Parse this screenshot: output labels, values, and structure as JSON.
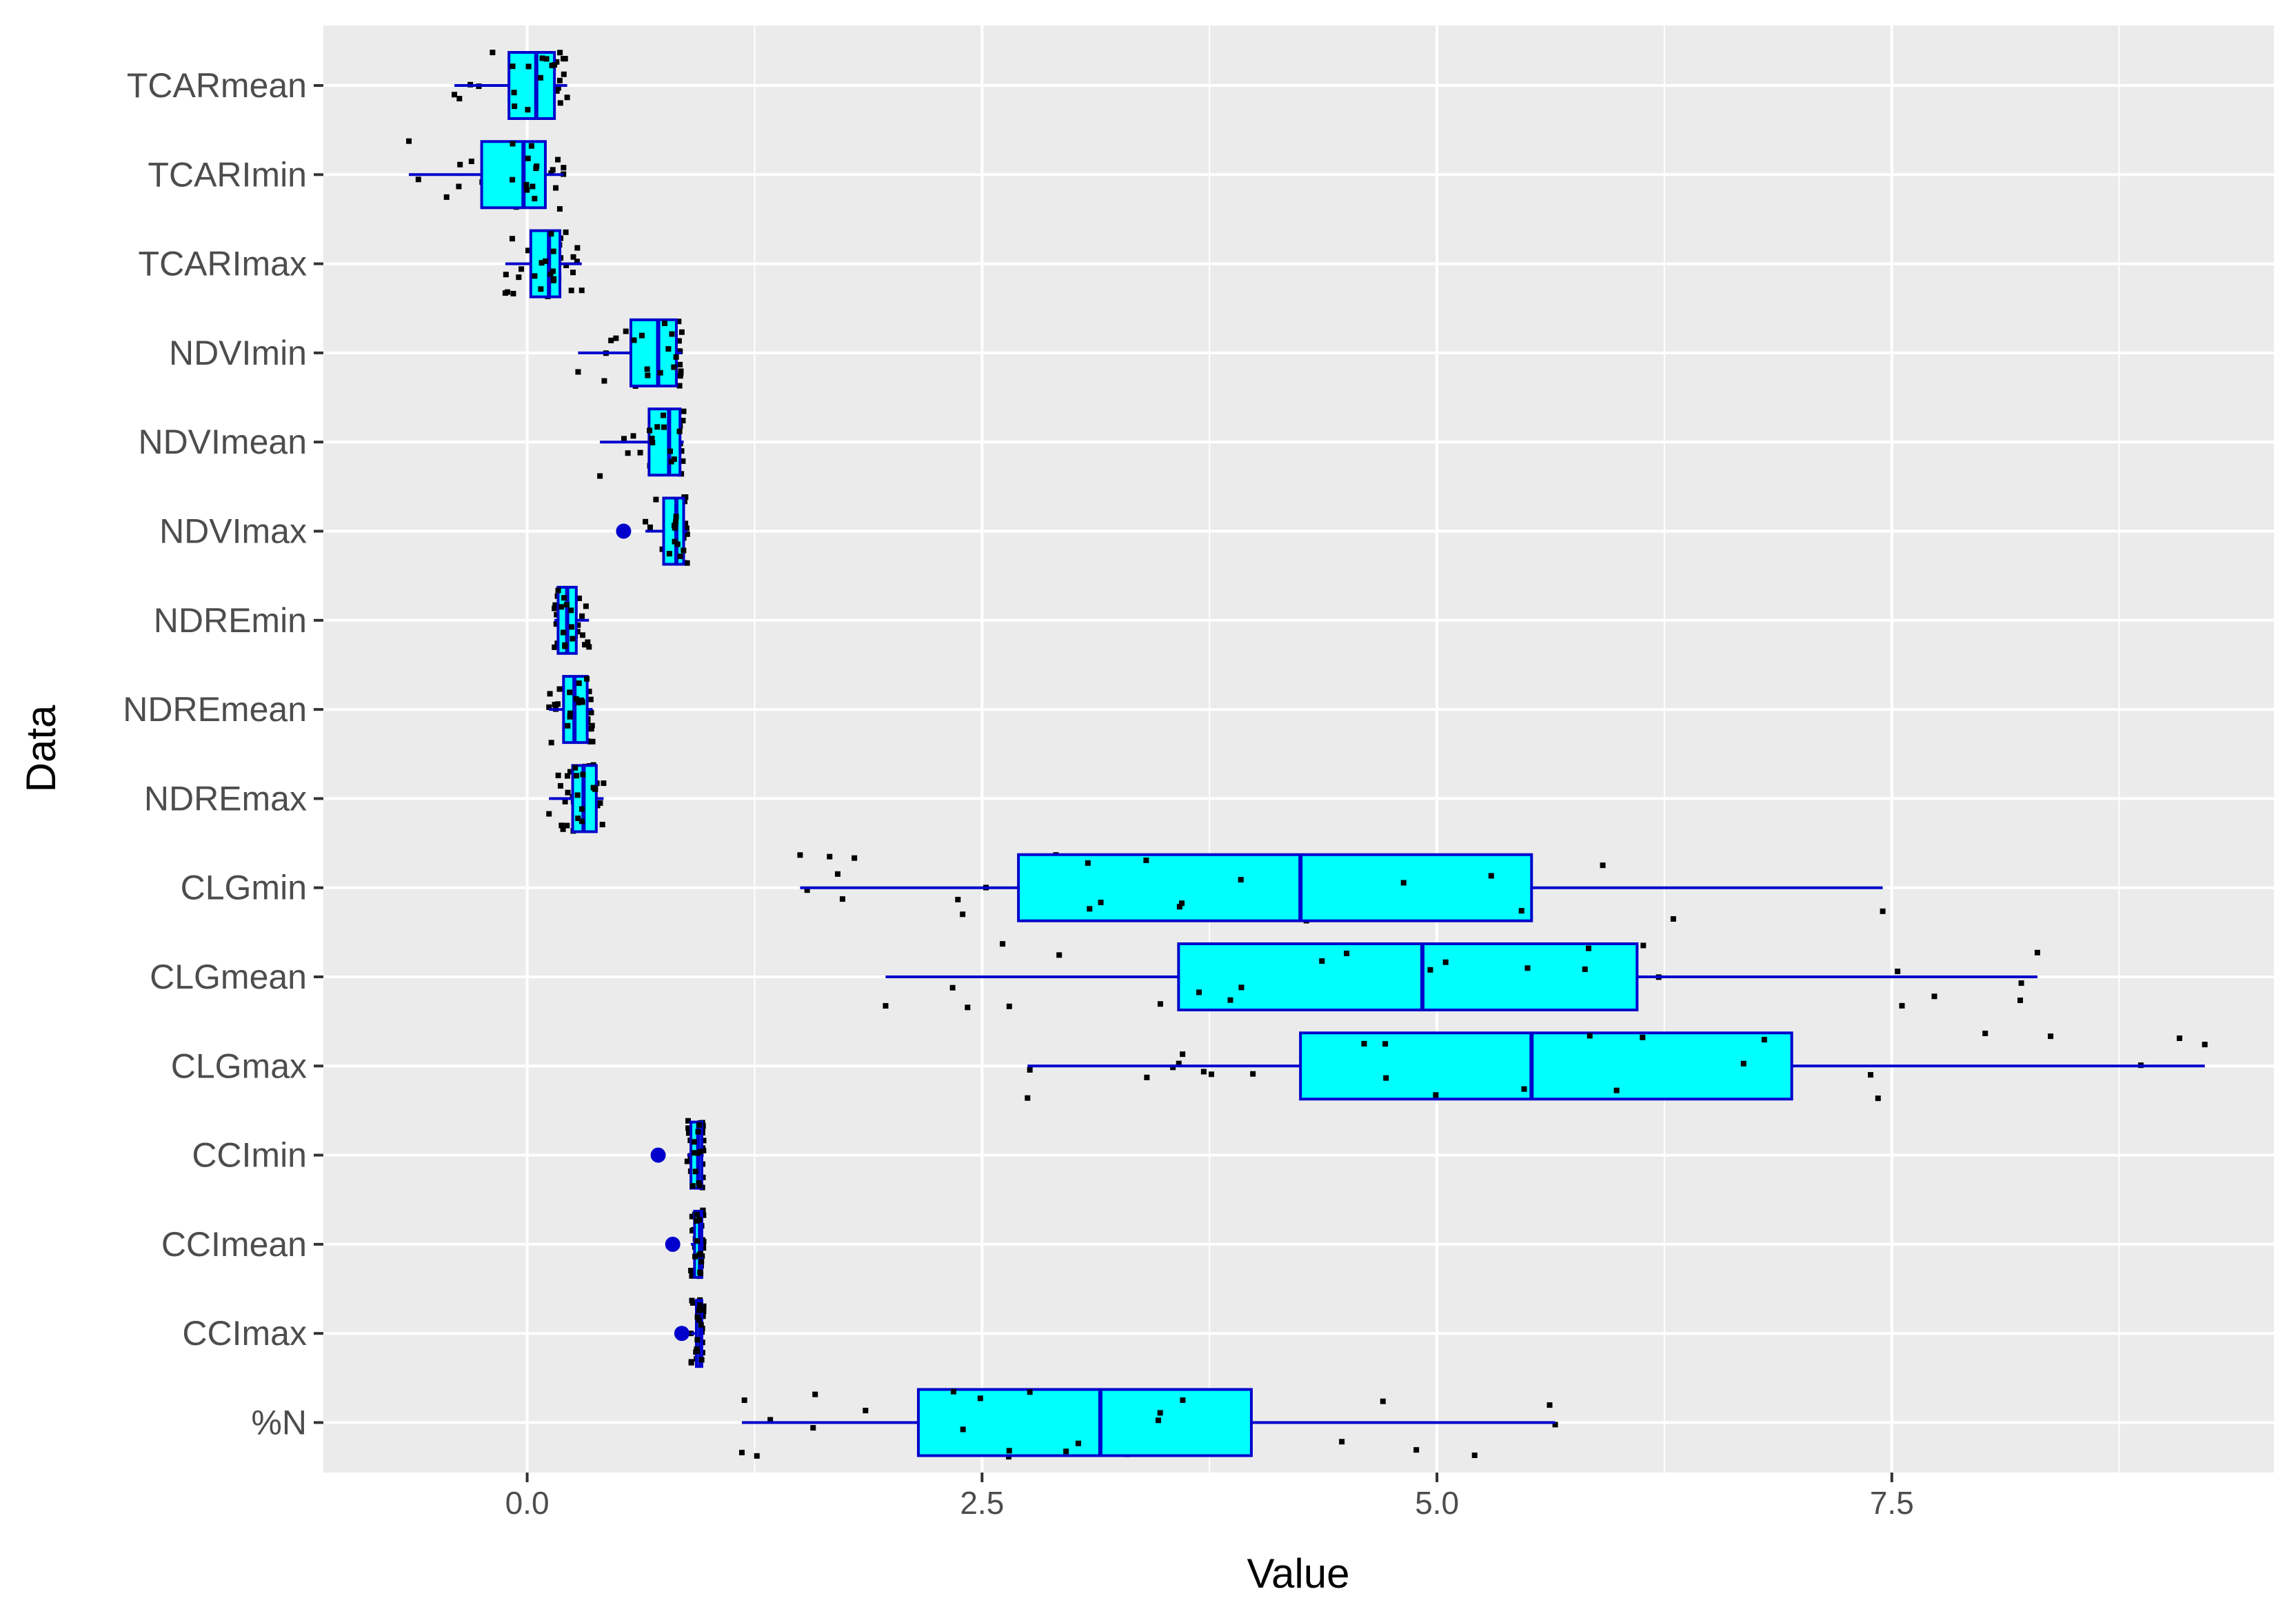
{
  "chart_data": {
    "type": "boxplot",
    "orientation": "horizontal",
    "xlabel": "Value",
    "ylabel": "Data",
    "xlim": [
      -1.12,
      9.6
    ],
    "xticks": [
      0.0,
      2.5,
      5.0,
      7.5
    ],
    "xtick_labels": [
      "0.0",
      "2.5",
      "5.0",
      "7.5"
    ],
    "grid": true,
    "legend": "none",
    "colors": {
      "panel_bg": "#EBEBEB",
      "grid": "#FFFFFF",
      "box_fill": "#00FFFF",
      "box_line": "#0000CC",
      "outlier": "#0000CC",
      "point": "#000000",
      "axis_text": "#4D4D4D",
      "title_text": "#000000"
    },
    "categories": [
      "TCARmean",
      "TCARImin",
      "TCARImax",
      "NDVImin",
      "NDVImean",
      "NDVImax",
      "NDREmin",
      "NDREmean",
      "NDREmax",
      "CLGmin",
      "CLGmean",
      "CLGmax",
      "CCImin",
      "CCImean",
      "CCImax",
      "%N"
    ],
    "boxes": [
      {
        "name": "TCARmean",
        "whisker_low": -0.4,
        "q1": -0.1,
        "median": 0.05,
        "q3": 0.15,
        "whisker_high": 0.22,
        "outliers": []
      },
      {
        "name": "TCARImin",
        "whisker_low": -0.65,
        "q1": -0.25,
        "median": -0.02,
        "q3": 0.1,
        "whisker_high": 0.2,
        "outliers": []
      },
      {
        "name": "TCARImax",
        "whisker_low": -0.12,
        "q1": 0.02,
        "median": 0.12,
        "q3": 0.18,
        "whisker_high": 0.3,
        "outliers": []
      },
      {
        "name": "NDVImin",
        "whisker_low": 0.28,
        "q1": 0.57,
        "median": 0.72,
        "q3": 0.82,
        "whisker_high": 0.85,
        "outliers": []
      },
      {
        "name": "NDVImean",
        "whisker_low": 0.4,
        "q1": 0.67,
        "median": 0.78,
        "q3": 0.84,
        "whisker_high": 0.86,
        "outliers": []
      },
      {
        "name": "NDVImax",
        "whisker_low": 0.65,
        "q1": 0.75,
        "median": 0.82,
        "q3": 0.86,
        "whisker_high": 0.88,
        "outliers": [
          0.53
        ]
      },
      {
        "name": "NDREmin",
        "whisker_low": 0.15,
        "q1": 0.17,
        "median": 0.22,
        "q3": 0.27,
        "whisker_high": 0.34,
        "outliers": []
      },
      {
        "name": "NDREmean",
        "whisker_low": 0.12,
        "q1": 0.2,
        "median": 0.26,
        "q3": 0.33,
        "whisker_high": 0.36,
        "outliers": []
      },
      {
        "name": "NDREmax",
        "whisker_low": 0.12,
        "q1": 0.25,
        "median": 0.31,
        "q3": 0.38,
        "whisker_high": 0.42,
        "outliers": []
      },
      {
        "name": "CLGmin",
        "whisker_low": 1.5,
        "q1": 2.7,
        "median": 4.25,
        "q3": 5.52,
        "whisker_high": 7.45,
        "outliers": []
      },
      {
        "name": "CLGmean",
        "whisker_low": 1.97,
        "q1": 3.58,
        "median": 4.92,
        "q3": 6.1,
        "whisker_high": 8.3,
        "outliers": []
      },
      {
        "name": "CLGmax",
        "whisker_low": 2.75,
        "q1": 4.25,
        "median": 5.52,
        "q3": 6.95,
        "whisker_high": 9.22,
        "outliers": []
      },
      {
        "name": "CCImin",
        "whisker_low": 0.88,
        "q1": 0.9,
        "median": 0.94,
        "q3": 0.96,
        "whisker_high": 0.97,
        "outliers": [
          0.72
        ]
      },
      {
        "name": "CCImean",
        "whisker_low": 0.9,
        "q1": 0.92,
        "median": 0.95,
        "q3": 0.96,
        "whisker_high": 0.97,
        "outliers": [
          0.8
        ]
      },
      {
        "name": "CCImax",
        "whisker_low": 0.9,
        "q1": 0.93,
        "median": 0.95,
        "q3": 0.96,
        "whisker_high": 0.97,
        "outliers": [
          0.85
        ]
      },
      {
        "name": "%N",
        "whisker_low": 1.18,
        "q1": 2.15,
        "median": 3.15,
        "q3": 3.98,
        "whisker_high": 5.65,
        "outliers": []
      }
    ]
  }
}
